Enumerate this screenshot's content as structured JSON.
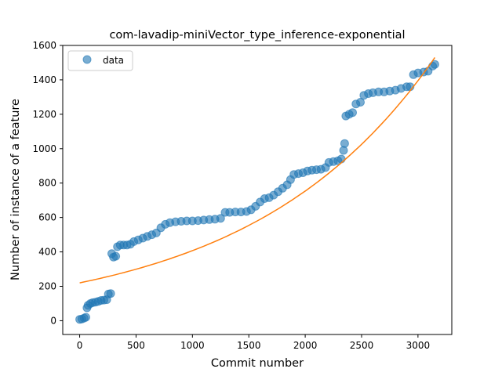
{
  "chart_data": {
    "type": "scatter",
    "title": "com-lavadip-miniVector_type_inference-exponential",
    "xlabel": "Commit number",
    "ylabel": "Number of instance of a feature",
    "xlim": [
      -150,
      3300
    ],
    "ylim": [
      -80,
      1600
    ],
    "xticks": [
      0,
      500,
      1000,
      1500,
      2000,
      2500,
      3000
    ],
    "yticks": [
      0,
      200,
      400,
      600,
      800,
      1000,
      1200,
      1400,
      1600
    ],
    "grid": false,
    "legend": {
      "placement": "top-left",
      "entries": [
        "data"
      ]
    },
    "colors": {
      "data": "#1f77b4",
      "fit": "#ff7f0e"
    },
    "series": [
      {
        "name": "data",
        "kind": "scatter",
        "points": [
          [
            0,
            8
          ],
          [
            20,
            10
          ],
          [
            40,
            15
          ],
          [
            55,
            20
          ],
          [
            65,
            75
          ],
          [
            75,
            90
          ],
          [
            95,
            100
          ],
          [
            115,
            105
          ],
          [
            140,
            108
          ],
          [
            165,
            112
          ],
          [
            190,
            118
          ],
          [
            215,
            120
          ],
          [
            240,
            122
          ],
          [
            255,
            155
          ],
          [
            275,
            158
          ],
          [
            285,
            390
          ],
          [
            300,
            370
          ],
          [
            320,
            375
          ],
          [
            335,
            430
          ],
          [
            360,
            440
          ],
          [
            390,
            440
          ],
          [
            420,
            440
          ],
          [
            450,
            445
          ],
          [
            480,
            460
          ],
          [
            520,
            470
          ],
          [
            560,
            480
          ],
          [
            600,
            490
          ],
          [
            640,
            500
          ],
          [
            680,
            510
          ],
          [
            720,
            540
          ],
          [
            760,
            560
          ],
          [
            800,
            570
          ],
          [
            850,
            575
          ],
          [
            900,
            578
          ],
          [
            950,
            580
          ],
          [
            1000,
            580
          ],
          [
            1050,
            582
          ],
          [
            1100,
            585
          ],
          [
            1150,
            588
          ],
          [
            1200,
            590
          ],
          [
            1250,
            595
          ],
          [
            1290,
            630
          ],
          [
            1330,
            630
          ],
          [
            1380,
            632
          ],
          [
            1430,
            632
          ],
          [
            1480,
            635
          ],
          [
            1520,
            645
          ],
          [
            1560,
            665
          ],
          [
            1600,
            690
          ],
          [
            1640,
            710
          ],
          [
            1680,
            715
          ],
          [
            1720,
            730
          ],
          [
            1760,
            750
          ],
          [
            1800,
            770
          ],
          [
            1840,
            790
          ],
          [
            1870,
            820
          ],
          [
            1900,
            850
          ],
          [
            1940,
            855
          ],
          [
            1980,
            860
          ],
          [
            2020,
            870
          ],
          [
            2060,
            875
          ],
          [
            2100,
            878
          ],
          [
            2140,
            880
          ],
          [
            2180,
            890
          ],
          [
            2210,
            920
          ],
          [
            2250,
            925
          ],
          [
            2290,
            930
          ],
          [
            2320,
            940
          ],
          [
            2340,
            990
          ],
          [
            2350,
            1030
          ],
          [
            2360,
            1190
          ],
          [
            2390,
            1200
          ],
          [
            2420,
            1210
          ],
          [
            2450,
            1260
          ],
          [
            2490,
            1270
          ],
          [
            2520,
            1310
          ],
          [
            2560,
            1320
          ],
          [
            2600,
            1325
          ],
          [
            2650,
            1330
          ],
          [
            2700,
            1330
          ],
          [
            2750,
            1335
          ],
          [
            2800,
            1340
          ],
          [
            2850,
            1350
          ],
          [
            2900,
            1360
          ],
          [
            2930,
            1360
          ],
          [
            2960,
            1430
          ],
          [
            3000,
            1440
          ],
          [
            3050,
            1445
          ],
          [
            3090,
            1450
          ],
          [
            3130,
            1480
          ],
          [
            3150,
            1490
          ]
        ]
      },
      {
        "name": "",
        "kind": "line",
        "function": "exponential",
        "y_at_x0": 220,
        "y_at_x3150": 1530,
        "x_range": [
          0,
          3150
        ]
      }
    ]
  }
}
